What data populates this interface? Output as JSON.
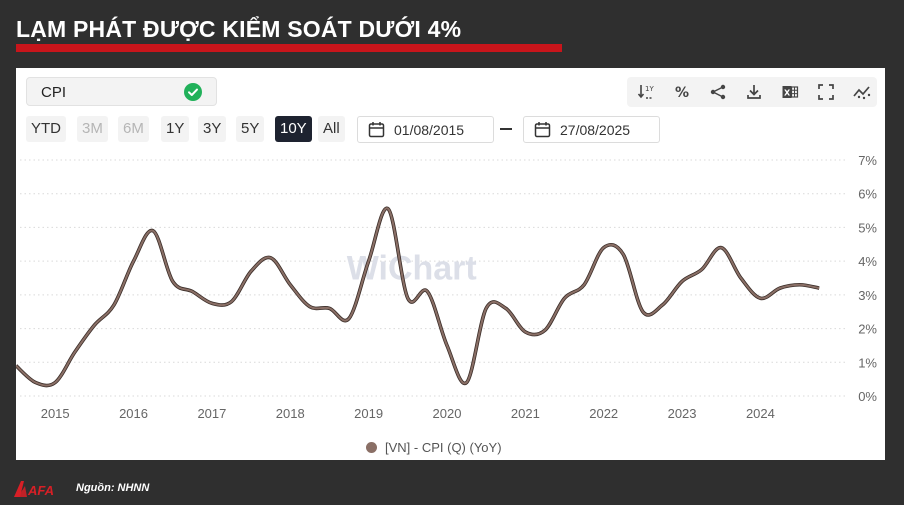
{
  "title": "LẠM PHÁT ĐƯỢC KIỂM SOÁT DƯỚI 4%",
  "source": "Nguồn: NHNN",
  "brand": "AFA",
  "accent_color": "#c8151b",
  "controls": {
    "indicator": "CPI",
    "ranges": [
      {
        "label": "YTD",
        "state": "normal"
      },
      {
        "label": "3M",
        "state": "disabled"
      },
      {
        "label": "6M",
        "state": "disabled"
      },
      {
        "label": "1Y",
        "state": "normal"
      },
      {
        "label": "3Y",
        "state": "normal"
      },
      {
        "label": "5Y",
        "state": "normal"
      },
      {
        "label": "10Y",
        "state": "active"
      },
      {
        "label": "All",
        "state": "normal"
      }
    ],
    "date_from": "01/08/2015",
    "date_to": "27/08/2025",
    "tools": [
      "sort-by-year-icon",
      "percent-icon",
      "share-icon",
      "download-icon",
      "excel-icon",
      "fullscreen-icon",
      "chart-type-icon"
    ]
  },
  "chart_data": {
    "type": "line",
    "watermark": "WiChart",
    "xlabel": "",
    "ylabel": "",
    "x_ticks": [
      "2015",
      "2016",
      "2017",
      "2018",
      "2019",
      "2020",
      "2021",
      "2022",
      "2023",
      "2024"
    ],
    "y_ticks": [
      "0%",
      "1%",
      "2%",
      "3%",
      "4%",
      "5%",
      "6%",
      "7%"
    ],
    "ylim": [
      0,
      7
    ],
    "xlim": [
      2014.5,
      2024.99
    ],
    "grid": true,
    "legend_position": "bottom-center",
    "series": [
      {
        "name": "[VN] - CPI (Q) (YoY)",
        "color": "#8a6f66",
        "points": [
          [
            2014.5,
            0.9
          ],
          [
            2014.75,
            0.4
          ],
          [
            2015.0,
            0.4
          ],
          [
            2015.25,
            1.3
          ],
          [
            2015.5,
            2.1
          ],
          [
            2015.75,
            2.7
          ],
          [
            2016.0,
            4.0
          ],
          [
            2016.25,
            4.9
          ],
          [
            2016.5,
            3.4
          ],
          [
            2016.75,
            3.1
          ],
          [
            2017.0,
            2.75
          ],
          [
            2017.25,
            2.8
          ],
          [
            2017.5,
            3.7
          ],
          [
            2017.75,
            4.1
          ],
          [
            2018.0,
            3.3
          ],
          [
            2018.25,
            2.65
          ],
          [
            2018.5,
            2.6
          ],
          [
            2018.75,
            2.3
          ],
          [
            2019.0,
            4.0
          ],
          [
            2019.25,
            5.55
          ],
          [
            2019.5,
            2.9
          ],
          [
            2019.75,
            3.1
          ],
          [
            2020.0,
            1.5
          ],
          [
            2020.25,
            0.4
          ],
          [
            2020.5,
            2.6
          ],
          [
            2020.75,
            2.6
          ],
          [
            2021.0,
            1.9
          ],
          [
            2021.25,
            1.95
          ],
          [
            2021.5,
            2.9
          ],
          [
            2021.75,
            3.3
          ],
          [
            2022.0,
            4.4
          ],
          [
            2022.25,
            4.2
          ],
          [
            2022.5,
            2.5
          ],
          [
            2022.75,
            2.7
          ],
          [
            2023.0,
            3.4
          ],
          [
            2023.25,
            3.75
          ],
          [
            2023.5,
            4.4
          ],
          [
            2023.75,
            3.5
          ],
          [
            2024.0,
            2.9
          ],
          [
            2024.25,
            3.2
          ],
          [
            2024.5,
            3.3
          ],
          [
            2024.75,
            3.2
          ]
        ]
      }
    ]
  }
}
